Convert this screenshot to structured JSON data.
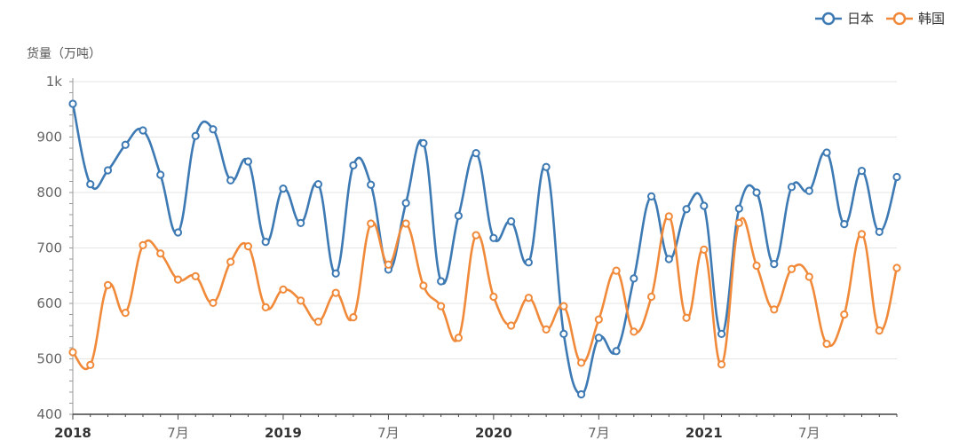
{
  "chart_data": {
    "type": "line",
    "ylabel": "货量（万吨）",
    "ylim": [
      400,
      1000
    ],
    "yticks": [
      400,
      500,
      600,
      700,
      800,
      900,
      1000
    ],
    "ytick_labels": [
      "400",
      "500",
      "600",
      "700",
      "800",
      "900",
      "1k"
    ],
    "x_labels": [
      "2018",
      "7月",
      "2019",
      "7月",
      "2020",
      "7月",
      "2021",
      "7月"
    ],
    "x": [
      "2018-01",
      "2018-02",
      "2018-03",
      "2018-04",
      "2018-05",
      "2018-06",
      "2018-07",
      "2018-08",
      "2018-09",
      "2018-10",
      "2018-11",
      "2018-12",
      "2019-01",
      "2019-02",
      "2019-03",
      "2019-04",
      "2019-05",
      "2019-06",
      "2019-07",
      "2019-08",
      "2019-09",
      "2019-10",
      "2019-11",
      "2019-12",
      "2020-01",
      "2020-02",
      "2020-03",
      "2020-04",
      "2020-05",
      "2020-06",
      "2020-07",
      "2020-08",
      "2020-09",
      "2020-10",
      "2020-11",
      "2020-12",
      "2021-01",
      "2021-02",
      "2021-03",
      "2021-04",
      "2021-05",
      "2021-06",
      "2021-07",
      "2021-08",
      "2021-09",
      "2021-10",
      "2021-11",
      "2021-12"
    ],
    "series": [
      {
        "name": "日本",
        "color": "#3d79b3",
        "values": [
          960,
          815,
          840,
          886,
          912,
          832,
          728,
          902,
          914,
          822,
          856,
          711,
          807,
          745,
          815,
          654,
          849,
          814,
          661,
          781,
          889,
          640,
          758,
          871,
          718,
          748,
          674,
          846,
          545,
          436,
          538,
          514,
          645,
          793,
          680,
          770,
          776,
          545,
          771,
          800,
          671,
          810,
          803,
          872,
          743,
          839,
          729,
          828
        ]
      },
      {
        "name": "韩国",
        "color": "#f08a3a",
        "values": [
          512,
          489,
          633,
          583,
          705,
          690,
          643,
          649,
          601,
          675,
          703,
          593,
          625,
          605,
          567,
          619,
          575,
          744,
          670,
          744,
          632,
          595,
          538,
          723,
          612,
          560,
          610,
          553,
          595,
          493,
          571,
          659,
          549,
          612,
          757,
          574,
          697,
          490,
          745,
          668,
          589,
          662,
          648,
          527,
          580,
          725,
          551,
          664
        ]
      }
    ],
    "grid": true,
    "legend_position": "top-right"
  }
}
